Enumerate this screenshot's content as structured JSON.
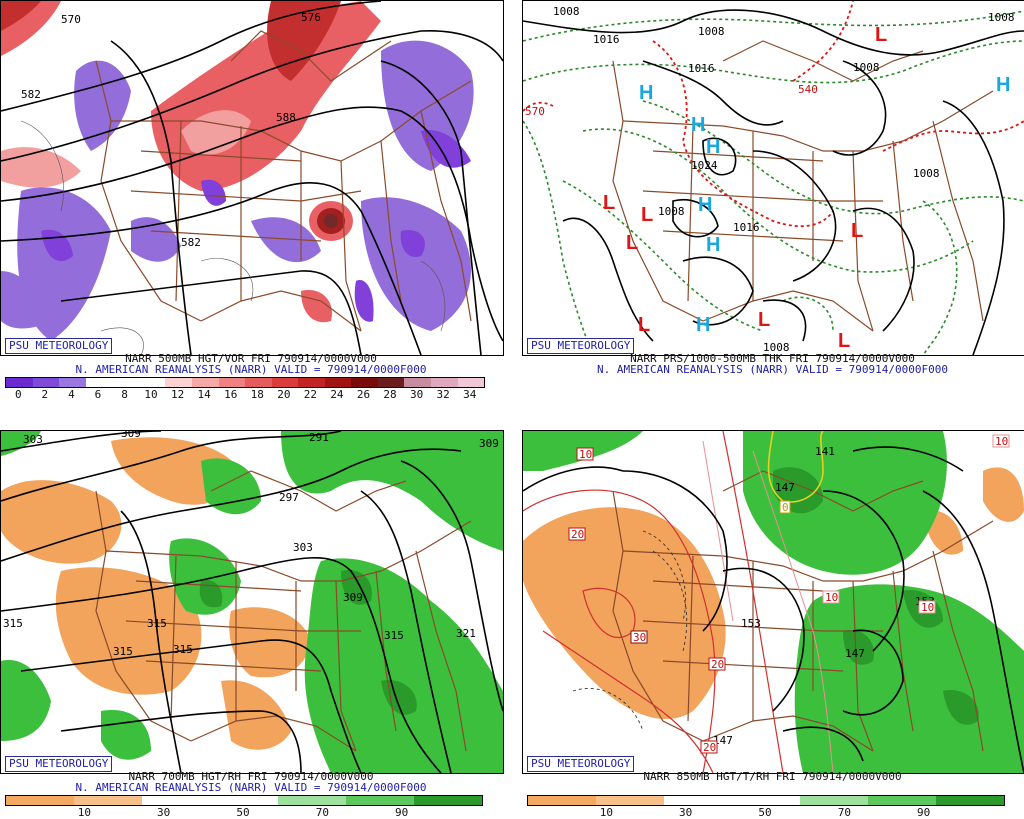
{
  "brand": "PSU METEOROLOGY",
  "colors": {
    "vort_purple_dark": "#7a36d8",
    "vort_purple": "#8e66d8",
    "vort_red": "#e8585c",
    "vort_red_light": "#f29a9a",
    "vort_dark": "#7a1010",
    "rh_dry": "#f2a35c",
    "rh_wet": "#3cbf3c",
    "rh_wet_dark": "#2a9a2a",
    "border_brown": "#8a4a2a",
    "high_blue": "#1aa7e0",
    "low_red": "#e01414"
  },
  "panels": {
    "vort": {
      "caption_line1": "NARR 500MB HGT/VOR FRI 790914/0000V000",
      "caption_line2": "N. AMERICAN REANALYSIS (NARR) VALID = 790914/0000F000",
      "colorbar": {
        "labels": [
          "0",
          "2",
          "4",
          "6",
          "8",
          "10",
          "12",
          "14",
          "16",
          "18",
          "20",
          "22",
          "24",
          "26",
          "28",
          "30",
          "32",
          "34"
        ],
        "colors": [
          "#6a2ad0",
          "#7e4ad8",
          "#9a76e0",
          "#ffffff",
          "#ffffff",
          "#ffffff",
          "#fdd2d2",
          "#f5a8a8",
          "#ee8282",
          "#e65c5c",
          "#da3c3c",
          "#c02424",
          "#a01414",
          "#7a0a0a",
          "#6a1e1e",
          "#c88ca0",
          "#e0a8c0",
          "#f0c8d8"
        ]
      },
      "contour_labels": [
        "582",
        "588",
        "570",
        "576",
        "582"
      ]
    },
    "thk": {
      "caption_line1": "NARR PRS/1000-500MB THK FRI 790914/0000V000",
      "caption_line2": "N. AMERICAN REANALYSIS (NARR) VALID = 790914/0000F000",
      "isobar_labels": [
        "1008",
        "1016",
        "1008",
        "1016",
        "1024",
        "1008",
        "1008",
        "1016",
        "1008",
        "1008",
        "1008"
      ],
      "thickness_labels": [
        "570",
        "540"
      ],
      "highs": [
        "H",
        "H",
        "H",
        "H",
        "H",
        "H",
        "H"
      ],
      "lows": [
        "L",
        "L",
        "L",
        "L",
        "L",
        "L",
        "L",
        "L"
      ]
    },
    "rh700": {
      "caption_line1": "NARR 700MB HGT/RH FRI 790914/0000V000",
      "caption_line2": "N. AMERICAN REANALYSIS (NARR) VALID = 790914/0000F000",
      "contour_labels": [
        "303",
        "309",
        "291",
        "297",
        "303",
        "309",
        "315",
        "315",
        "315",
        "315",
        "315",
        "321",
        "309"
      ],
      "colorbar": {
        "labels": [
          "10",
          "30",
          "50",
          "70",
          "90"
        ],
        "colors": [
          "#f4a860",
          "#f6c088",
          "#ffffff",
          "#ffffff",
          "#9ee09e",
          "#5cc85c",
          "#2a9a2a"
        ]
      }
    },
    "t850": {
      "caption_line1": "NARR 850MB HGT/T/RH FRI 790914/0000V000",
      "caption_line2": "",
      "contour_labels": [
        "153",
        "147",
        "153",
        "147",
        "147",
        "141"
      ],
      "temp_labels": [
        "10",
        "20",
        "30",
        "20",
        "20",
        "10",
        "10",
        "0",
        "10"
      ],
      "colorbar": {
        "labels": [
          "10",
          "30",
          "50",
          "70",
          "90"
        ],
        "colors": [
          "#f4a860",
          "#f6c088",
          "#ffffff",
          "#ffffff",
          "#9ee09e",
          "#5cc85c",
          "#2a9a2a"
        ]
      }
    }
  }
}
